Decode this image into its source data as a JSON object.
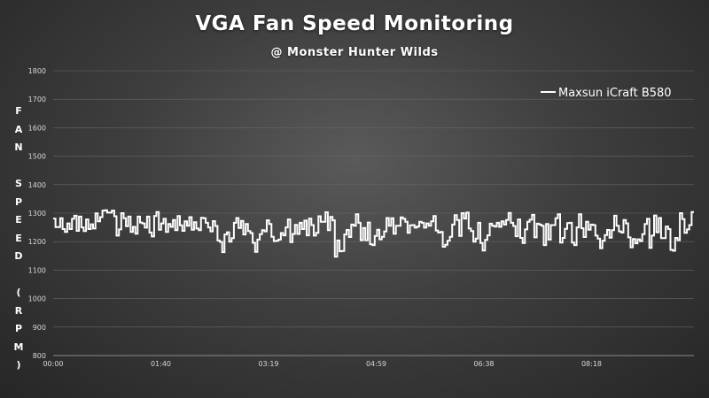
{
  "chart_data": {
    "type": "line",
    "title": "VGA Fan Speed Monitoring",
    "subtitle": "@ Monster Hunter Wilds",
    "ylabel": "FAN SPEED (RPM)",
    "ylim": [
      800,
      1800
    ],
    "yticks": [
      "800",
      "900",
      "1000",
      "1100",
      "1200",
      "1300",
      "1400",
      "1500",
      "1600",
      "1700",
      "1800"
    ],
    "xticks": [
      "00:00",
      "01:40",
      "03:19",
      "04:59",
      "06:38",
      "08:18"
    ],
    "legend_position": "top-right",
    "line_color": "#ffffff",
    "series": [
      {
        "name": "Maxsun iCraft B580",
        "values": [
          1281,
          1251,
          1251,
          1282,
          1244,
          1234,
          1264,
          1244,
          1280,
          1291,
          1238,
          1288,
          1250,
          1237,
          1278,
          1244,
          1261,
          1246,
          1299,
          1271,
          1286,
          1309,
          1310,
          1302,
          1302,
          1309,
          1289,
          1221,
          1243,
          1300,
          1282,
          1254,
          1288,
          1234,
          1252,
          1228,
          1288,
          1267,
          1264,
          1249,
          1288,
          1232,
          1218,
          1290,
          1304,
          1242,
          1264,
          1280,
          1234,
          1262,
          1252,
          1276,
          1240,
          1290,
          1257,
          1238,
          1271,
          1256,
          1286,
          1242,
          1268,
          1246,
          1240,
          1284,
          1282,
          1266,
          1250,
          1236,
          1272,
          1255,
          1204,
          1199,
          1163,
          1225,
          1233,
          1200,
          1212,
          1266,
          1283,
          1248,
          1273,
          1225,
          1262,
          1237,
          1230,
          1196,
          1164,
          1207,
          1226,
          1240,
          1236,
          1275,
          1262,
          1217,
          1202,
          1203,
          1207,
          1230,
          1222,
          1250,
          1278,
          1198,
          1227,
          1259,
          1227,
          1266,
          1244,
          1274,
          1222,
          1281,
          1258,
          1221,
          1231,
          1289,
          1270,
          1270,
          1303,
          1240,
          1287,
          1275,
          1147,
          1204,
          1166,
          1167,
          1225,
          1241,
          1216,
          1260,
          1256,
          1296,
          1266,
          1205,
          1248,
          1205,
          1267,
          1191,
          1188,
          1220,
          1242,
          1208,
          1217,
          1236,
          1283,
          1256,
          1282,
          1228,
          1256,
          1256,
          1285,
          1280,
          1270,
          1231,
          1257,
          1258,
          1249,
          1253,
          1270,
          1266,
          1249,
          1264,
          1256,
          1271,
          1290,
          1239,
          1232,
          1234,
          1182,
          1189,
          1203,
          1217,
          1260,
          1293,
          1276,
          1220,
          1300,
          1281,
          1302,
          1246,
          1237,
          1200,
          1211,
          1266,
          1195,
          1169,
          1206,
          1222,
          1263,
          1256,
          1253,
          1266,
          1252,
          1271,
          1260,
          1276,
          1301,
          1266,
          1255,
          1219,
          1278,
          1213,
          1195,
          1243,
          1270,
          1277,
          1294,
          1215,
          1263,
          1260,
          1256,
          1188,
          1262,
          1207,
          1258,
          1258,
          1282,
          1296,
          1197,
          1213,
          1245,
          1265,
          1266,
          1197,
          1188,
          1250,
          1296,
          1247,
          1216,
          1270,
          1242,
          1260,
          1258,
          1221,
          1211,
          1177,
          1203,
          1223,
          1241,
          1214,
          1240,
          1291,
          1256,
          1236,
          1232,
          1276,
          1264,
          1215,
          1180,
          1209,
          1194,
          1208,
          1202,
          1226,
          1262,
          1280,
          1178,
          1221,
          1292,
          1233,
          1283,
          1212,
          1212,
          1253,
          1244,
          1171,
          1168,
          1213,
          1205,
          1300,
          1279,
          1231,
          1243,
          1258,
          1304
        ]
      }
    ]
  }
}
